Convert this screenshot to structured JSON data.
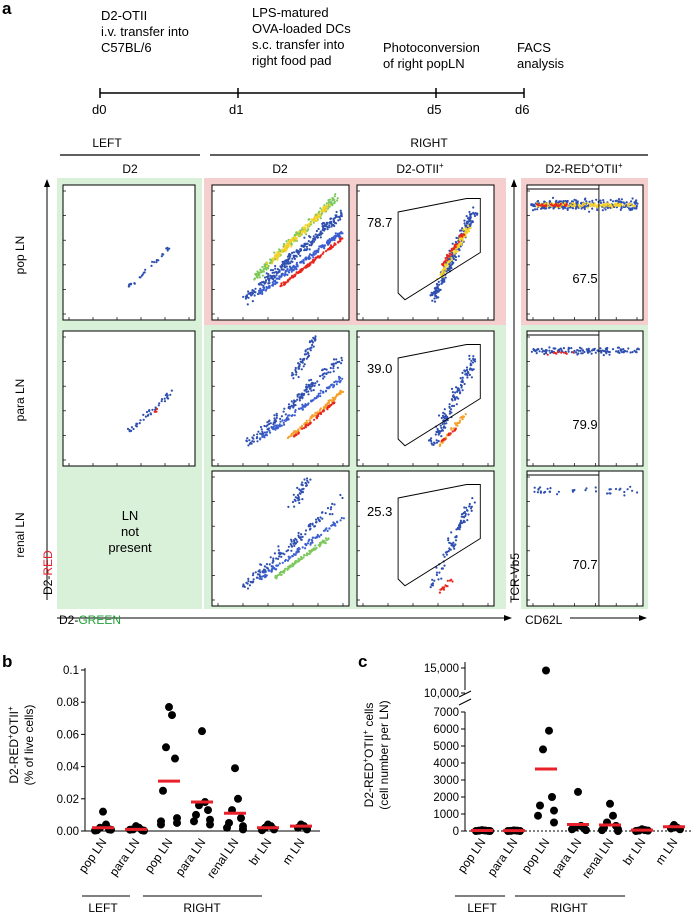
{
  "panel_labels": {
    "a": "a",
    "b": "b",
    "c": "c"
  },
  "timeline": {
    "steps": [
      {
        "day": "d0",
        "lines": [
          "D2-OTII",
          "i.v. transfer into",
          "C57BL/6"
        ]
      },
      {
        "day": "d1",
        "lines": [
          "LPS-matured",
          "OVA-loaded DCs",
          "s.c. transfer into",
          "right food pad"
        ]
      },
      {
        "day": "d5",
        "lines": [
          "Photoconversion",
          "of right popLN"
        ]
      },
      {
        "day": "d6",
        "lines": [
          "FACS",
          "analysis"
        ]
      }
    ]
  },
  "flow": {
    "side_left": "LEFT",
    "side_right": "RIGHT",
    "col_left_d2": "D2",
    "col_right_d2": "D2",
    "col_otii_base": "D2-OTII",
    "col_otii_sup": "+",
    "col_red_a": "D2-RED",
    "col_red_sup1": "+",
    "col_red_b": "OTII",
    "col_red_sup2": "+",
    "rows": [
      "pop LN",
      "para LN",
      "renal LN"
    ],
    "not_present_lines": [
      "LN",
      "not",
      "present"
    ],
    "gate_values": [
      "78.7",
      "39.0",
      "25.3"
    ],
    "cd62l_values": [
      "67.5",
      "79.9",
      "70.7"
    ],
    "y_axis_prefix": "D2-",
    "y_axis_colored": "RED",
    "x_axis_prefix": "D2-",
    "x_axis_colored": "GREEN",
    "y_axis_right": "TCR-Vb5",
    "x_axis_right": "CD62L",
    "colors": {
      "red_text": "#e8202a",
      "green_text": "#1fa035",
      "pink_bg": "#f5cfcd",
      "green_bg": "#d9f0d9"
    }
  },
  "chart_b": {
    "ylabel_a": "D2-RED",
    "ylabel_sup1": "+",
    "ylabel_b": "OTII",
    "ylabel_sup2": "+",
    "ylabel2": "(% of live cells)",
    "left_label": "LEFT",
    "right_label": "RIGHT"
  },
  "chart_c": {
    "ylabel_a": "D2-RED",
    "ylabel_sup1": "+",
    "ylabel_b": "OTII",
    "ylabel_sup2": "+",
    "ylabel_c": " cells",
    "ylabel2": "(cell number per LN)",
    "left_label": "LEFT",
    "right_label": "RIGHT"
  },
  "chart_data": [
    {
      "type": "scatter",
      "title": "",
      "xlabel": "",
      "ylabel": "D2-RED+OTII+ (% of live cells)",
      "categories": [
        "pop LN",
        "para LN",
        "pop LN",
        "para LN",
        "renal LN",
        "br LN",
        "m LN"
      ],
      "ylim": [
        0,
        0.1
      ],
      "yticks": [
        "0.00",
        "0.02",
        "0.04",
        "0.06",
        "0.08",
        "0.1"
      ],
      "ytick_values": [
        0,
        0.02,
        0.04,
        0.06,
        0.08,
        0.1
      ],
      "points": [
        [
          0.012,
          0.004,
          0.002,
          0.001,
          0.0005,
          0.0008,
          0.0003
        ],
        [
          0.003,
          0.002,
          0.001,
          0.0005,
          0.0008,
          0.0002
        ],
        [
          0.077,
          0.072,
          0.052,
          0.045,
          0.025,
          0.008,
          0.006,
          0.005,
          0.004
        ],
        [
          0.062,
          0.018,
          0.016,
          0.013,
          0.01,
          0.007,
          0.006,
          0.004
        ],
        [
          0.039,
          0.02,
          0.013,
          0.008,
          0.005,
          0.003,
          0.002,
          0.001
        ],
        [
          0.004,
          0.003,
          0.002,
          0.001,
          0.0005
        ],
        [
          0.004,
          0.003,
          0.002,
          0.001
        ]
      ],
      "means": [
        0.002,
        0.001,
        0.031,
        0.018,
        0.011,
        0.002,
        0.003
      ]
    },
    {
      "type": "scatter",
      "title": "",
      "xlabel": "",
      "ylabel": "D2-RED+OTII+ cells (cell number per LN)",
      "categories": [
        "pop LN",
        "para LN",
        "pop LN",
        "para LN",
        "renal LN",
        "br LN",
        "m LN"
      ],
      "ylim": [
        0,
        7000
      ],
      "ylim_upper": [
        10000,
        15000
      ],
      "yticks": [
        "0",
        "1000",
        "2000",
        "3000",
        "4000",
        "5000",
        "6000",
        "7000"
      ],
      "ytick_values": [
        0,
        1000,
        2000,
        3000,
        4000,
        5000,
        6000,
        7000
      ],
      "yticks_upper": [
        "10,000",
        "15,000"
      ],
      "ytick_values_upper": [
        10000,
        15000
      ],
      "points": [
        [
          50,
          30,
          20,
          10,
          0,
          0
        ],
        [
          40,
          20,
          10,
          0,
          0
        ],
        [
          14500,
          5900,
          4800,
          2000,
          1500,
          1200,
          900,
          500
        ],
        [
          2300,
          300,
          200,
          150,
          100,
          50
        ],
        [
          1600,
          900,
          500,
          300,
          200,
          100,
          50,
          0
        ],
        [
          100,
          50,
          30,
          20,
          0
        ],
        [
          350,
          200,
          150,
          100
        ]
      ],
      "means": [
        30,
        20,
        3650,
        380,
        350,
        50,
        250
      ]
    }
  ]
}
